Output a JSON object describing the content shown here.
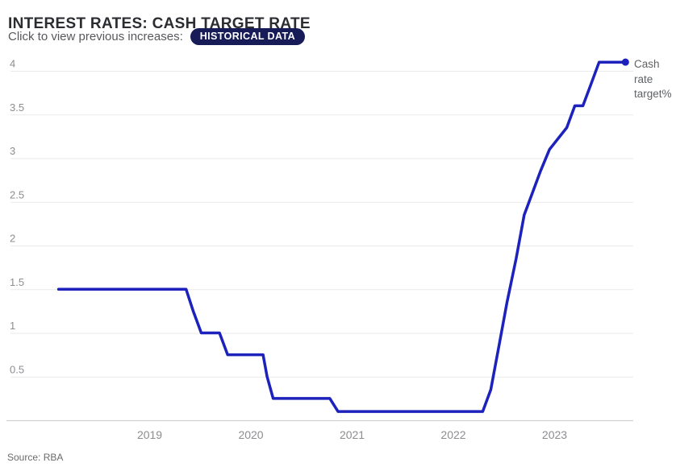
{
  "header": {
    "title": "INTEREST RATES: CASH TARGET RATE",
    "subtitle": "Click to view previous increases:",
    "badge_label": "HISTORICAL DATA"
  },
  "footer": {
    "source": "Source: RBA"
  },
  "chart_data": {
    "type": "line",
    "title": "INTEREST RATES: CASH TARGET RATE",
    "xlabel": "",
    "ylabel": "",
    "x_ticks": [
      "2019",
      "2020",
      "2021",
      "2022",
      "2023"
    ],
    "y_ticks": [
      "0.5",
      "1",
      "1.5",
      "2",
      "2.5",
      "3",
      "3.5",
      "4"
    ],
    "xlim": [
      2017.625,
      2023.777
    ],
    "ylim": [
      0,
      4
    ],
    "grid": "horizontal",
    "legend_position": "right-of-last-point",
    "colors": {
      "line": "#1c22bb",
      "grid": "#eaeaea",
      "axis": "#d2d2d2",
      "tick_label": "#8c8d90"
    },
    "series": [
      {
        "name": "Cash rate target%",
        "color": "#1c22bb",
        "points": [
          [
            2018.1,
            1.5
          ],
          [
            2019.36,
            1.5
          ],
          [
            2019.43,
            1.25
          ],
          [
            2019.51,
            1.0
          ],
          [
            2019.69,
            1.0
          ],
          [
            2019.77,
            0.75
          ],
          [
            2020.12,
            0.75
          ],
          [
            2020.16,
            0.5
          ],
          [
            2020.22,
            0.25
          ],
          [
            2020.78,
            0.25
          ],
          [
            2020.86,
            0.1
          ],
          [
            2022.29,
            0.1
          ],
          [
            2022.37,
            0.35
          ],
          [
            2022.45,
            0.85
          ],
          [
            2022.53,
            1.35
          ],
          [
            2022.62,
            1.85
          ],
          [
            2022.7,
            2.35
          ],
          [
            2022.78,
            2.6
          ],
          [
            2022.86,
            2.85
          ],
          [
            2022.95,
            3.1
          ],
          [
            2023.12,
            3.35
          ],
          [
            2023.2,
            3.6
          ],
          [
            2023.28,
            3.6
          ],
          [
            2023.36,
            3.85
          ],
          [
            2023.44,
            4.1
          ],
          [
            2023.7,
            4.1
          ]
        ]
      }
    ]
  }
}
